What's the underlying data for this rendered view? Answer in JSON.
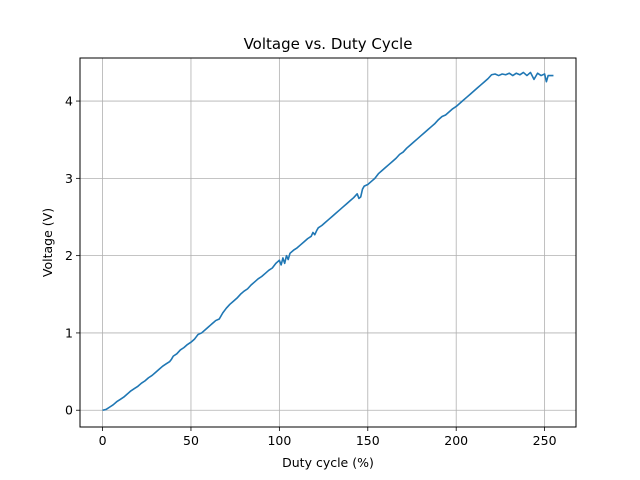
{
  "chart_data": {
    "type": "line",
    "title": "Voltage vs. Duty Cycle",
    "xlabel": "Duty cycle (%)",
    "ylabel": "Voltage (V)",
    "xlim": [
      -12.75,
      267.75
    ],
    "ylim": [
      -0.217,
      4.557
    ],
    "xticks": [
      0,
      50,
      100,
      150,
      200,
      250
    ],
    "yticks": [
      0,
      1,
      2,
      3,
      4
    ],
    "grid": true,
    "line_color": "#1f77b4",
    "series": [
      {
        "x": [
          0,
          2,
          4,
          6,
          8,
          10,
          12,
          14,
          16,
          18,
          20,
          22,
          24,
          26,
          28,
          30,
          32,
          34,
          36,
          38,
          39,
          40,
          42,
          44,
          46,
          48,
          50,
          52,
          53,
          54,
          56,
          58,
          60,
          61,
          62,
          63,
          64,
          66,
          68,
          70,
          72,
          74,
          76,
          78,
          80,
          82,
          84,
          86,
          88,
          90,
          92,
          94,
          96,
          98,
          99,
          100,
          101,
          102,
          103,
          104,
          105,
          106,
          108,
          110,
          112,
          114,
          116,
          118,
          119,
          120,
          121,
          122,
          124,
          126,
          128,
          130,
          132,
          134,
          136,
          138,
          140,
          142,
          144,
          145,
          146,
          147,
          148,
          150,
          152,
          154,
          156,
          158,
          160,
          162,
          164,
          166,
          168,
          170,
          172,
          174,
          176,
          178,
          180,
          182,
          184,
          186,
          188,
          190,
          192,
          194,
          196,
          198,
          200,
          202,
          204,
          206,
          208,
          210,
          212,
          214,
          216,
          218,
          220,
          222,
          224,
          226,
          228,
          230,
          232,
          234,
          236,
          238,
          240,
          242,
          244,
          246,
          248,
          250,
          251,
          252,
          254,
          255
        ],
        "y": [
          0.0,
          0.01,
          0.04,
          0.07,
          0.11,
          0.14,
          0.17,
          0.21,
          0.25,
          0.28,
          0.31,
          0.35,
          0.38,
          0.42,
          0.45,
          0.49,
          0.53,
          0.57,
          0.6,
          0.63,
          0.66,
          0.7,
          0.73,
          0.78,
          0.81,
          0.85,
          0.88,
          0.92,
          0.95,
          0.98,
          1.0,
          1.04,
          1.08,
          1.1,
          1.12,
          1.14,
          1.16,
          1.18,
          1.26,
          1.32,
          1.37,
          1.41,
          1.45,
          1.5,
          1.54,
          1.57,
          1.62,
          1.66,
          1.7,
          1.73,
          1.77,
          1.81,
          1.84,
          1.9,
          1.92,
          1.94,
          1.88,
          1.97,
          1.9,
          2.0,
          1.95,
          2.03,
          2.07,
          2.1,
          2.14,
          2.18,
          2.22,
          2.25,
          2.3,
          2.27,
          2.32,
          2.36,
          2.39,
          2.43,
          2.47,
          2.51,
          2.55,
          2.59,
          2.63,
          2.67,
          2.71,
          2.75,
          2.8,
          2.74,
          2.76,
          2.86,
          2.9,
          2.92,
          2.96,
          3.0,
          3.06,
          3.1,
          3.14,
          3.18,
          3.22,
          3.26,
          3.31,
          3.34,
          3.39,
          3.43,
          3.47,
          3.51,
          3.55,
          3.59,
          3.63,
          3.67,
          3.71,
          3.76,
          3.8,
          3.82,
          3.86,
          3.9,
          3.93,
          3.97,
          4.01,
          4.05,
          4.09,
          4.13,
          4.17,
          4.21,
          4.25,
          4.29,
          4.34,
          4.35,
          4.33,
          4.35,
          4.34,
          4.36,
          4.33,
          4.36,
          4.34,
          4.37,
          4.33,
          4.37,
          4.28,
          4.36,
          4.33,
          4.35,
          4.25,
          4.33,
          4.33,
          4.33
        ]
      }
    ]
  }
}
